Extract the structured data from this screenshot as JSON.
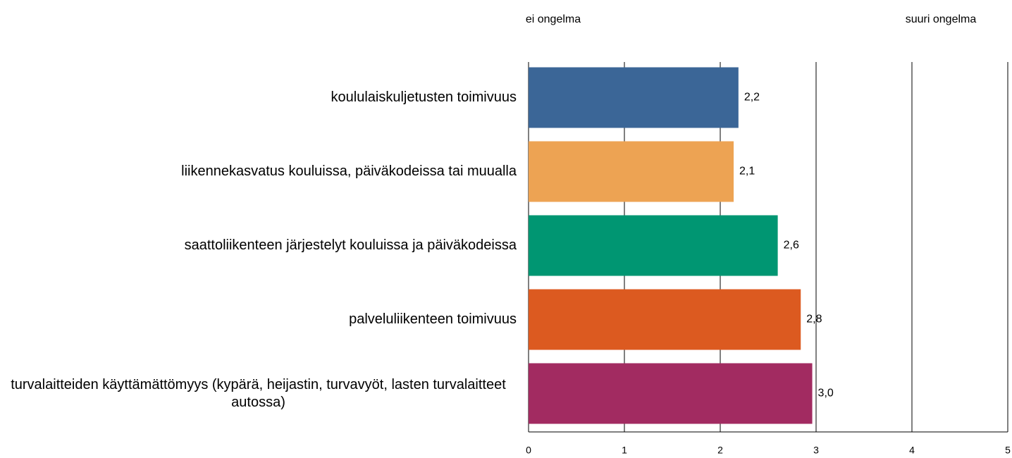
{
  "chart_data": {
    "type": "bar",
    "orientation": "horizontal",
    "annotations": [
      "ei ongelma",
      "suuri ongelma"
    ],
    "categories": [
      "koululaiskuljetusten toimivuus",
      "liikennekasvatus kouluissa, päiväkodeissa tai muualla",
      "saattoliikenteen järjestelyt kouluissa ja päiväkodeissa",
      "palveluliikenteen toimivuus",
      "turvalaitteiden käyttämättömyys (kypärä, heijastin, turvavyöt, lasten turvalaitteet autossa)"
    ],
    "values": [
      2.19,
      2.14,
      2.6,
      2.84,
      2.96
    ],
    "value_labels": [
      "2,2",
      "2,1",
      "2,6",
      "2,8",
      "3,0"
    ],
    "colors": [
      "#3b6697",
      "#eda353",
      "#009672",
      "#dc5a20",
      "#a22b61"
    ],
    "xlim": [
      0,
      5
    ],
    "xticks": [
      0,
      1,
      2,
      3,
      4,
      5
    ],
    "grid": true
  }
}
